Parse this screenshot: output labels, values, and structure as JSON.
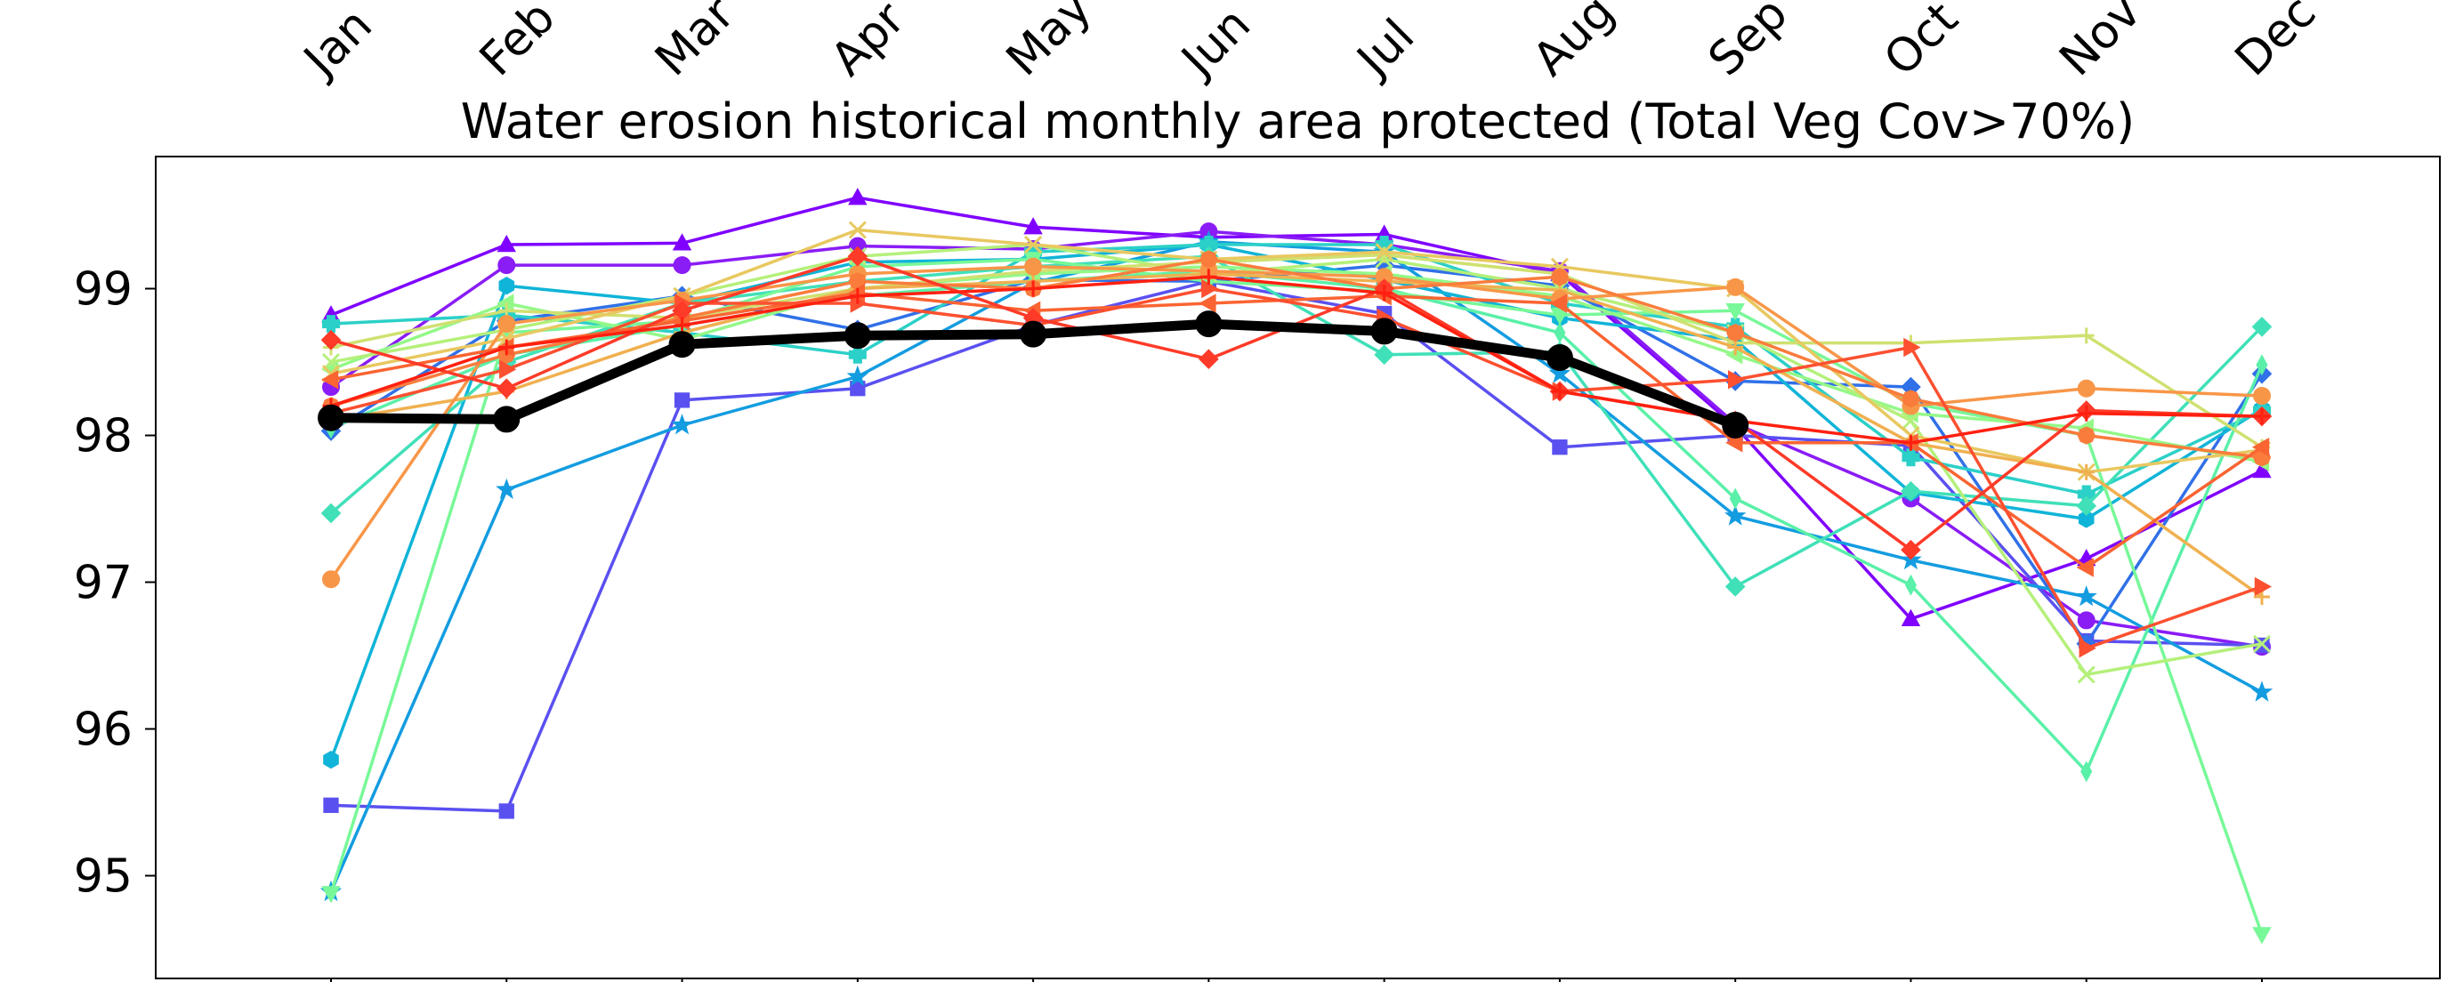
{
  "chart_data": {
    "type": "line",
    "title": "Water erosion historical monthly area protected (Total Veg Cov>70%)",
    "xlabel": "",
    "ylabel": "",
    "categories": [
      "Jan",
      "Feb",
      "Mar",
      "Apr",
      "May",
      "Jun",
      "Jul",
      "Aug",
      "Sep",
      "Oct",
      "Nov",
      "Dec"
    ],
    "x_axis_position": "top",
    "x_tick_rotation_deg": 45,
    "ylim": [
      94.3,
      99.9
    ],
    "yticks": [
      95,
      96,
      97,
      98,
      99
    ],
    "grid": false,
    "legend": "none",
    "series": [
      {
        "color": "#7f00ff",
        "marker": "triangle-up",
        "values": [
          98.82,
          99.3,
          99.31,
          99.62,
          99.42,
          99.35,
          99.37,
          99.1,
          98.06,
          96.75,
          97.16,
          97.76
        ]
      },
      {
        "color": "#8a1cf5",
        "marker": "circle",
        "values": [
          98.33,
          99.16,
          99.16,
          99.29,
          99.27,
          99.39,
          99.3,
          99.12,
          98.08,
          97.57,
          96.74,
          96.56
        ]
      },
      {
        "color": "#5a50f0",
        "marker": "square",
        "values": [
          95.48,
          95.44,
          98.24,
          98.32,
          98.75,
          99.05,
          98.83,
          97.92,
          98.0,
          97.93,
          96.6,
          96.57
        ]
      },
      {
        "color": "#3070e8",
        "marker": "diamond",
        "values": [
          98.03,
          98.78,
          98.95,
          98.72,
          99.06,
          99.05,
          99.16,
          99.02,
          98.37,
          98.33,
          96.58,
          98.42
        ]
      },
      {
        "color": "#139ce0",
        "marker": "star",
        "values": [
          94.89,
          97.63,
          98.07,
          98.4,
          99.04,
          99.32,
          99.25,
          98.42,
          97.45,
          97.15,
          96.9,
          96.25
        ]
      },
      {
        "color": "#10b4d8",
        "marker": "hexagon",
        "values": [
          95.79,
          99.02,
          98.9,
          99.18,
          99.2,
          99.3,
          99.06,
          98.8,
          98.65,
          97.61,
          97.43,
          98.18
        ]
      },
      {
        "color": "#2bd0c8",
        "marker": "cross",
        "values": [
          98.76,
          98.82,
          98.7,
          98.55,
          99.25,
          99.3,
          99.3,
          98.9,
          98.74,
          97.85,
          97.6,
          98.17
        ]
      },
      {
        "color": "#40e0b8",
        "marker": "diamond",
        "values": [
          97.47,
          98.5,
          98.9,
          99.05,
          99.15,
          99.22,
          98.55,
          98.57,
          96.97,
          97.62,
          97.52,
          98.74
        ]
      },
      {
        "color": "#5af0a8",
        "marker": "thin-diamond",
        "values": [
          98.05,
          98.55,
          98.75,
          98.95,
          99.05,
          99.12,
          99.0,
          98.7,
          97.57,
          96.98,
          95.71,
          98.48
        ]
      },
      {
        "color": "#78f898",
        "marker": "triangle-down",
        "values": [
          94.88,
          98.7,
          98.78,
          99.15,
          99.2,
          99.05,
          98.98,
          98.82,
          98.85,
          98.22,
          98.0,
          94.6
        ]
      },
      {
        "color": "#94f888",
        "marker": "triangle-left",
        "values": [
          98.45,
          98.9,
          98.65,
          99.0,
          99.1,
          99.15,
          99.1,
          98.95,
          98.55,
          98.15,
          98.05,
          97.82
        ]
      },
      {
        "color": "#b4f07a",
        "marker": "x",
        "values": [
          98.5,
          98.72,
          98.95,
          99.22,
          99.3,
          99.1,
          99.2,
          99.0,
          98.7,
          98.1,
          96.37,
          96.58
        ]
      },
      {
        "color": "#d0e070",
        "marker": "plus",
        "values": [
          98.6,
          98.85,
          98.8,
          99.0,
          99.12,
          99.18,
          99.23,
          99.1,
          98.63,
          98.63,
          98.68,
          97.92
        ]
      },
      {
        "color": "#e8c860",
        "marker": "x",
        "values": [
          98.42,
          98.66,
          98.95,
          99.4,
          99.3,
          99.2,
          99.25,
          99.15,
          99.0,
          98.0,
          97.75,
          97.9
        ]
      },
      {
        "color": "#f0b050",
        "marker": "plus",
        "values": [
          98.1,
          98.3,
          98.7,
          99.0,
          99.05,
          99.1,
          99.05,
          98.99,
          98.6,
          97.95,
          97.75,
          96.9
        ]
      },
      {
        "color": "#f89648",
        "marker": "circle",
        "values": [
          97.02,
          98.76,
          98.92,
          99.1,
          99.15,
          99.12,
          99.08,
          98.93,
          99.01,
          98.2,
          98.32,
          98.27
        ]
      },
      {
        "color": "#fa7c3c",
        "marker": "octagon",
        "values": [
          98.2,
          98.55,
          98.8,
          99.05,
          99.0,
          99.2,
          99.0,
          99.08,
          98.7,
          98.25,
          98.0,
          97.85
        ]
      },
      {
        "color": "#fa6432",
        "marker": "triangle-left",
        "values": [
          98.38,
          98.6,
          98.78,
          98.97,
          98.85,
          98.9,
          98.95,
          98.9,
          97.95,
          97.95,
          97.1,
          97.92
        ]
      },
      {
        "color": "#fc5030",
        "marker": "triangle-right",
        "values": [
          98.15,
          98.45,
          98.9,
          98.9,
          98.75,
          99.0,
          98.8,
          98.3,
          98.38,
          98.6,
          96.55,
          96.97
        ]
      },
      {
        "color": "#fe3a28",
        "marker": "diamond",
        "values": [
          98.65,
          98.32,
          98.85,
          99.22,
          98.8,
          98.52,
          99.0,
          98.3,
          98.1,
          97.22,
          98.17,
          98.13
        ]
      },
      {
        "color": "#ff2010",
        "marker": "plus",
        "values": [
          98.2,
          98.6,
          98.75,
          98.95,
          99.0,
          99.08,
          98.97,
          98.3,
          98.1,
          97.95,
          98.15,
          98.13
        ]
      },
      {
        "name": "",
        "color": "#000000",
        "marker": "circle",
        "thick": true,
        "values": [
          98.12,
          98.11,
          98.62,
          98.68,
          98.69,
          98.76,
          98.71,
          98.53,
          98.07,
          null,
          null,
          null
        ]
      }
    ]
  }
}
